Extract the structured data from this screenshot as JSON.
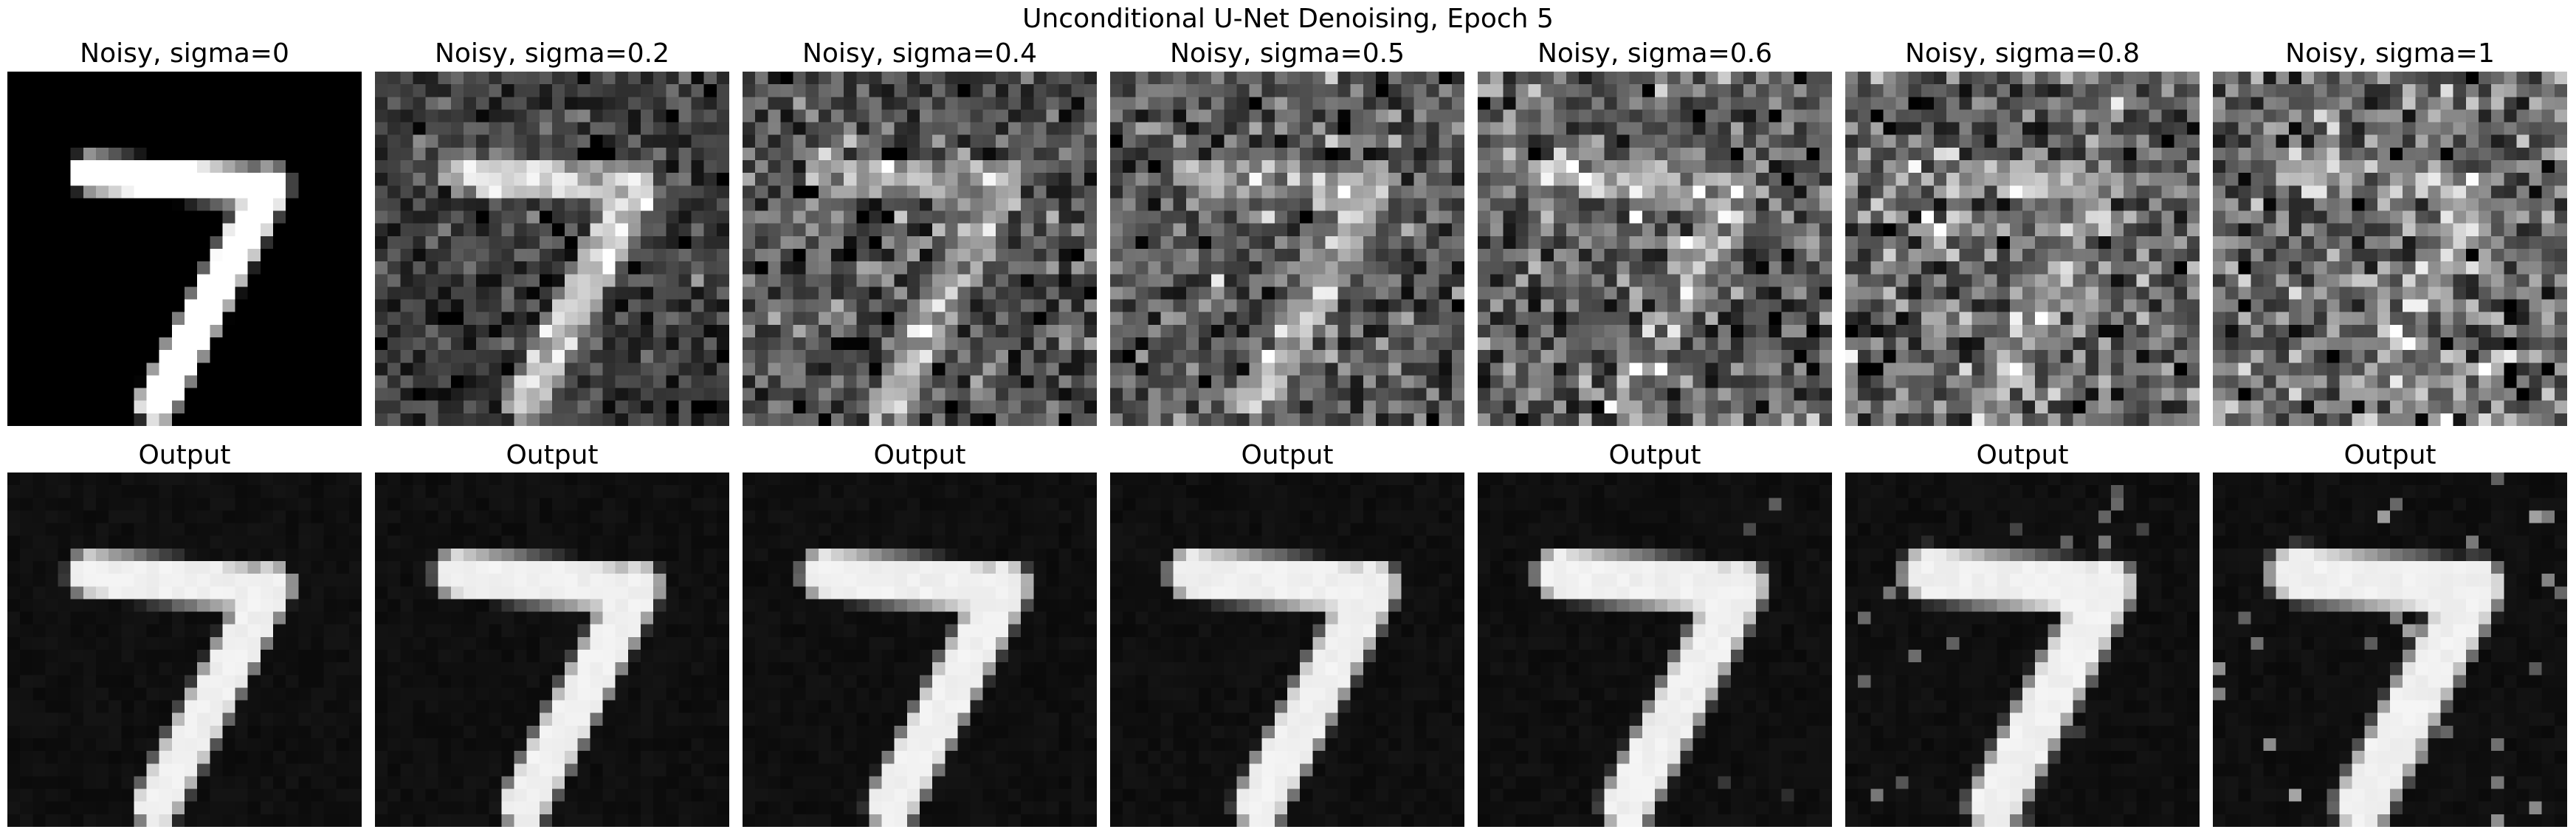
{
  "figure": {
    "title": "Unconditional U-Net Denoising, Epoch 5"
  },
  "noisy_row": {
    "title_prefix": "Noisy, sigma=",
    "sigmas": [
      0,
      0.2,
      0.4,
      0.5,
      0.6,
      0.8,
      1
    ],
    "titles": [
      "Noisy, sigma=0",
      "Noisy, sigma=0.2",
      "Noisy, sigma=0.4",
      "Noisy, sigma=0.5",
      "Noisy, sigma=0.6",
      "Noisy, sigma=0.8",
      "Noisy, sigma=1"
    ]
  },
  "output_row": {
    "titles": [
      "Output",
      "Output",
      "Output",
      "Output",
      "Output",
      "Output",
      "Output"
    ]
  },
  "image": {
    "digit": "7",
    "colormap": "grayscale",
    "grid": 28
  }
}
